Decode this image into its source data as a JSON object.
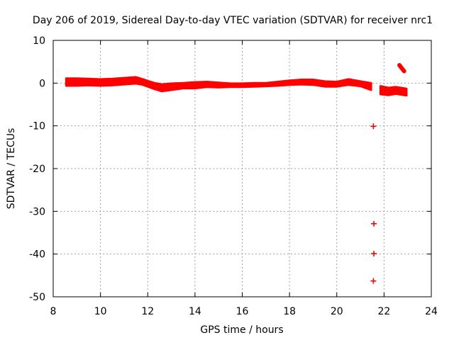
{
  "chart_data": {
    "type": "scatter",
    "title": "Day 206 of 2019, Sidereal Day-to-day VTEC variation (SDTVAR) for receiver nrc1",
    "xlabel": "GPS time / hours",
    "ylabel": "SDTVAR / TECUs",
    "xlim": [
      8,
      24
    ],
    "ylim": [
      -50,
      10
    ],
    "xticks": [
      "8",
      "10",
      "12",
      "14",
      "16",
      "18",
      "20",
      "22",
      "24"
    ],
    "yticks": [
      "10",
      "0",
      "-10",
      "-20",
      "-30",
      "-40",
      "-50"
    ],
    "grid": true,
    "series": [
      {
        "name": "SDTVAR",
        "color": "#ff0000",
        "marker": "plus",
        "band": [
          [
            8.55,
            -0.6,
            1.1
          ],
          [
            9.0,
            -0.6,
            1.1
          ],
          [
            9.5,
            -0.5,
            1.0
          ],
          [
            10.0,
            -0.6,
            0.9
          ],
          [
            10.5,
            -0.5,
            1.0
          ],
          [
            11.0,
            -0.3,
            1.2
          ],
          [
            11.5,
            -0.1,
            1.4
          ],
          [
            11.8,
            -0.4,
            0.9
          ],
          [
            12.0,
            -0.8,
            0.5
          ],
          [
            12.3,
            -1.4,
            0.0
          ],
          [
            12.6,
            -1.9,
            -0.3
          ],
          [
            13.0,
            -1.6,
            -0.1
          ],
          [
            13.5,
            -1.2,
            0.0
          ],
          [
            14.0,
            -1.2,
            0.2
          ],
          [
            14.5,
            -0.9,
            0.3
          ],
          [
            15.0,
            -1.0,
            0.1
          ],
          [
            15.5,
            -0.9,
            -0.1
          ],
          [
            16.0,
            -0.9,
            -0.1
          ],
          [
            16.5,
            -0.8,
            0.0
          ],
          [
            17.0,
            -0.7,
            0.0
          ],
          [
            17.5,
            -0.6,
            0.3
          ],
          [
            18.0,
            -0.4,
            0.6
          ],
          [
            18.5,
            -0.3,
            0.8
          ],
          [
            19.0,
            -0.4,
            0.8
          ],
          [
            19.5,
            -0.8,
            0.4
          ],
          [
            20.0,
            -0.8,
            0.3
          ],
          [
            20.5,
            -0.4,
            0.9
          ],
          [
            21.0,
            -0.7,
            0.4
          ],
          [
            21.45,
            -1.6,
            0.0
          ]
        ],
        "band2": [
          [
            21.85,
            -2.6,
            -0.7
          ],
          [
            22.2,
            -2.8,
            -1.1
          ],
          [
            22.5,
            -2.5,
            -0.9
          ],
          [
            22.95,
            -2.9,
            -1.3
          ]
        ],
        "streak": [
          [
            22.65,
            4.2
          ],
          [
            22.85,
            2.8
          ]
        ],
        "points": [
          [
            21.55,
            -10.1
          ],
          [
            21.57,
            -32.9
          ],
          [
            21.57,
            -39.9
          ],
          [
            21.55,
            -46.3
          ]
        ]
      }
    ]
  }
}
